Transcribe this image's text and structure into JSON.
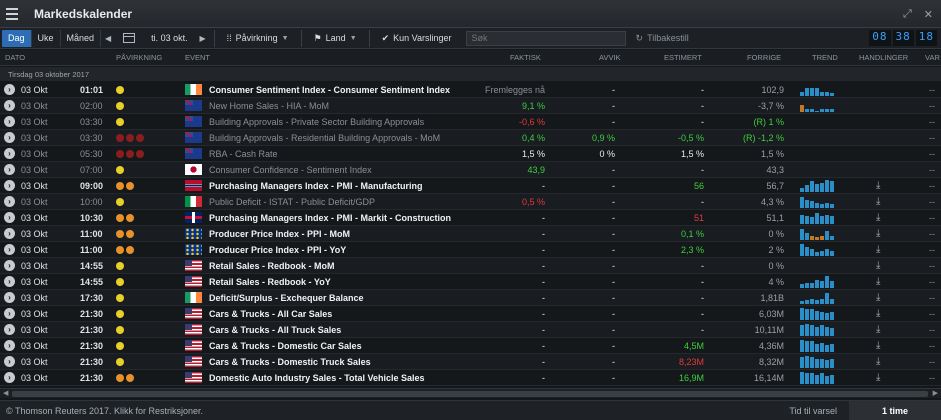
{
  "app": {
    "title": "Markedskalender"
  },
  "toolbar": {
    "period_buttons": [
      "Dag",
      "Uke",
      "Måned"
    ],
    "date": "ti. 03 okt.",
    "filter_impact": "Påvirkning",
    "filter_country": "Land",
    "only_alerts": "Kun Varslinger",
    "search_placeholder": "Søk",
    "reset": "Tilbakestill",
    "clock": [
      "08",
      "38",
      "18"
    ]
  },
  "columns": {
    "date": "DATO",
    "impact": "PÅVIRKNING",
    "event": "EVENT",
    "actual": "FAKTISK",
    "deviation": "AVVIK",
    "estimate": "ESTIMERT",
    "previous": "FORRIGE",
    "trend": "TREND",
    "actions": "HANDLINGER",
    "more": "VAR"
  },
  "group_label": "Tirsdag 03 oktober 2017",
  "rows": [
    {
      "date": "03 Okt",
      "time": "01:01",
      "impact": [
        "yellow"
      ],
      "flag": "ie",
      "event": "Consumer Sentiment Index - Consumer Sentiment Index",
      "actual": "Fremlegges nå",
      "actual_color": "grey",
      "dev": "-",
      "est": "-",
      "prev": "102,9",
      "trend": [
        3,
        6,
        6,
        6,
        3,
        3,
        2
      ],
      "dim": false,
      "download": false
    },
    {
      "date": "03 Okt",
      "time": "02:00",
      "impact": [
        "yellow"
      ],
      "flag": "au",
      "event": "New Home Sales - HIA - MoM",
      "actual": "9,1 %",
      "actual_color": "green",
      "dev": "-",
      "est": "-",
      "prev": "-3,7 %",
      "trend": [
        5,
        2,
        2,
        1,
        2,
        2,
        2
      ],
      "trend_o": [
        0
      ],
      "dim": true,
      "download": false
    },
    {
      "date": "03 Okt",
      "time": "03:30",
      "impact": [
        "yellow"
      ],
      "flag": "au",
      "event": "Building Approvals - Private Sector Building Approvals",
      "actual": "-0,6 %",
      "actual_color": "red",
      "dev": "-",
      "est": "-",
      "prev": "(R) 1 %",
      "prev_color": "green",
      "trend": [],
      "dim": true,
      "download": false
    },
    {
      "date": "03 Okt",
      "time": "03:30",
      "impact": [
        "red",
        "red",
        "red"
      ],
      "flag": "au",
      "event": "Building Approvals - Residential Building Approvals - MoM",
      "actual": "0,4 %",
      "actual_color": "green",
      "dev": "0,9 %",
      "dev_color": "green",
      "est": "-0,5 %",
      "est_color": "green",
      "prev": "(R) -1,2 %",
      "prev_color": "green",
      "trend": [],
      "dim": true,
      "download": false
    },
    {
      "date": "03 Okt",
      "time": "05:30",
      "impact": [
        "red",
        "red",
        "red"
      ],
      "flag": "au",
      "event": "RBA - Cash Rate",
      "actual": "1,5 %",
      "actual_color": "white",
      "dev": "0 %",
      "dev_color": "white",
      "est": "1,5 %",
      "est_color": "white",
      "prev": "1,5 %",
      "trend": [],
      "dim": true,
      "download": false
    },
    {
      "date": "03 Okt",
      "time": "07:00",
      "impact": [
        "yellow"
      ],
      "flag": "jp",
      "event": "Consumer Confidence - Sentiment Index",
      "actual": "43,9",
      "actual_color": "green",
      "dev": "-",
      "est": "-",
      "prev": "43,3",
      "trend": [],
      "dim": true,
      "download": false
    },
    {
      "date": "03 Okt",
      "time": "09:00",
      "impact": [
        "orange",
        "orange"
      ],
      "flag": "no",
      "event": "Purchasing Managers Index - PMI - Manufacturing",
      "actual": "-",
      "actual_color": "white",
      "dev": "-",
      "est": "56",
      "est_color": "green",
      "prev": "56,7",
      "trend": [
        3,
        5,
        8,
        6,
        7,
        9,
        8
      ],
      "dim": false,
      "download": true
    },
    {
      "date": "03 Okt",
      "time": "10:00",
      "impact": [
        "yellow"
      ],
      "flag": "it",
      "event": "Public Deficit - ISTAT - Public Deficit/GDP",
      "actual": "0,5 %",
      "actual_color": "red",
      "dev": "-",
      "est": "-",
      "prev": "4,3 %",
      "trend": [
        8,
        6,
        5,
        4,
        3,
        4,
        3
      ],
      "dim": true,
      "download": true
    },
    {
      "date": "03 Okt",
      "time": "10:30",
      "impact": [
        "orange",
        "orange"
      ],
      "flag": "gb",
      "event": "Purchasing Managers Index - PMI - Markit - Construction",
      "actual": "-",
      "actual_color": "white",
      "dev": "-",
      "est": "51",
      "est_color": "red",
      "prev": "51,1",
      "trend": [
        7,
        6,
        5,
        8,
        6,
        7,
        6
      ],
      "dim": false,
      "download": true
    },
    {
      "date": "03 Okt",
      "time": "11:00",
      "impact": [
        "orange",
        "orange"
      ],
      "flag": "eu",
      "event": "Producer Price Index - PPI - MoM",
      "actual": "-",
      "actual_color": "white",
      "dev": "-",
      "est": "0,1 %",
      "est_color": "green",
      "prev": "0 %",
      "trend": [
        8,
        5,
        3,
        2,
        3,
        7,
        3
      ],
      "trend_o": [
        2,
        3,
        4
      ],
      "dim": false,
      "download": true
    },
    {
      "date": "03 Okt",
      "time": "11:00",
      "impact": [
        "orange",
        "orange"
      ],
      "flag": "eu",
      "event": "Producer Price Index - PPI - YoY",
      "actual": "-",
      "actual_color": "white",
      "dev": "-",
      "est": "2,3 %",
      "est_color": "green",
      "prev": "2 %",
      "trend": [
        9,
        7,
        5,
        3,
        4,
        5,
        4
      ],
      "dim": false,
      "download": true
    },
    {
      "date": "03 Okt",
      "time": "14:55",
      "impact": [
        "yellow"
      ],
      "flag": "us",
      "event": "Retail Sales - Redbook - MoM",
      "actual": "-",
      "actual_color": "white",
      "dev": "-",
      "est": "-",
      "prev": "0 %",
      "trend": [],
      "dim": false,
      "download": true
    },
    {
      "date": "03 Okt",
      "time": "14:55",
      "impact": [
        "yellow"
      ],
      "flag": "us",
      "event": "Retail Sales - Redbook - YoY",
      "actual": "-",
      "actual_color": "white",
      "dev": "-",
      "est": "-",
      "prev": "4 %",
      "trend": [
        3,
        4,
        4,
        6,
        5,
        9,
        5
      ],
      "dim": false,
      "download": true
    },
    {
      "date": "03 Okt",
      "time": "17:30",
      "impact": [
        "yellow"
      ],
      "flag": "ie",
      "event": "Deficit/Surplus - Exchequer Balance",
      "actual": "-",
      "actual_color": "white",
      "dev": "-",
      "est": "-",
      "prev": "1,81B",
      "trend": [
        2,
        3,
        4,
        3,
        4,
        8,
        4
      ],
      "dim": false,
      "download": true
    },
    {
      "date": "03 Okt",
      "time": "21:30",
      "impact": [
        "yellow"
      ],
      "flag": "us",
      "event": "Cars & Trucks - All Car Sales",
      "actual": "-",
      "actual_color": "white",
      "dev": "-",
      "est": "-",
      "prev": "6,03M",
      "trend": [
        9,
        8,
        8,
        7,
        6,
        5,
        6
      ],
      "dim": false,
      "download": true
    },
    {
      "date": "03 Okt",
      "time": "21:30",
      "impact": [
        "yellow"
      ],
      "flag": "us",
      "event": "Cars & Trucks - All Truck Sales",
      "actual": "-",
      "actual_color": "white",
      "dev": "-",
      "est": "-",
      "prev": "10,11M",
      "trend": [
        8,
        9,
        8,
        7,
        8,
        7,
        6
      ],
      "dim": false,
      "download": true
    },
    {
      "date": "03 Okt",
      "time": "21:30",
      "impact": [
        "yellow"
      ],
      "flag": "us",
      "event": "Cars & Trucks - Domestic Car Sales",
      "actual": "-",
      "actual_color": "white",
      "dev": "-",
      "est": "4,5M",
      "est_color": "green",
      "prev": "4,36M",
      "trend": [
        9,
        8,
        8,
        6,
        7,
        5,
        6
      ],
      "dim": false,
      "download": true
    },
    {
      "date": "03 Okt",
      "time": "21:30",
      "impact": [
        "yellow"
      ],
      "flag": "us",
      "event": "Cars & Trucks - Domestic Truck Sales",
      "actual": "-",
      "actual_color": "white",
      "dev": "-",
      "est": "8,23M",
      "est_color": "red",
      "prev": "8,32M",
      "trend": [
        8,
        9,
        8,
        7,
        7,
        6,
        7
      ],
      "dim": false,
      "download": true
    },
    {
      "date": "03 Okt",
      "time": "21:30",
      "impact": [
        "orange",
        "orange"
      ],
      "flag": "us",
      "event": "Domestic Auto Industry Sales - Total Vehicle Sales",
      "actual": "-",
      "actual_color": "white",
      "dev": "-",
      "est": "16,9M",
      "est_color": "green",
      "prev": "16,14M",
      "trend": [
        9,
        8,
        8,
        7,
        8,
        6,
        7
      ],
      "dim": false,
      "download": true
    }
  ],
  "footer": {
    "copyright": "© Thomson Reuters 2017. Klikk for Restriksjoner.",
    "tts": "Tid til varsel",
    "interval": "1 time"
  }
}
